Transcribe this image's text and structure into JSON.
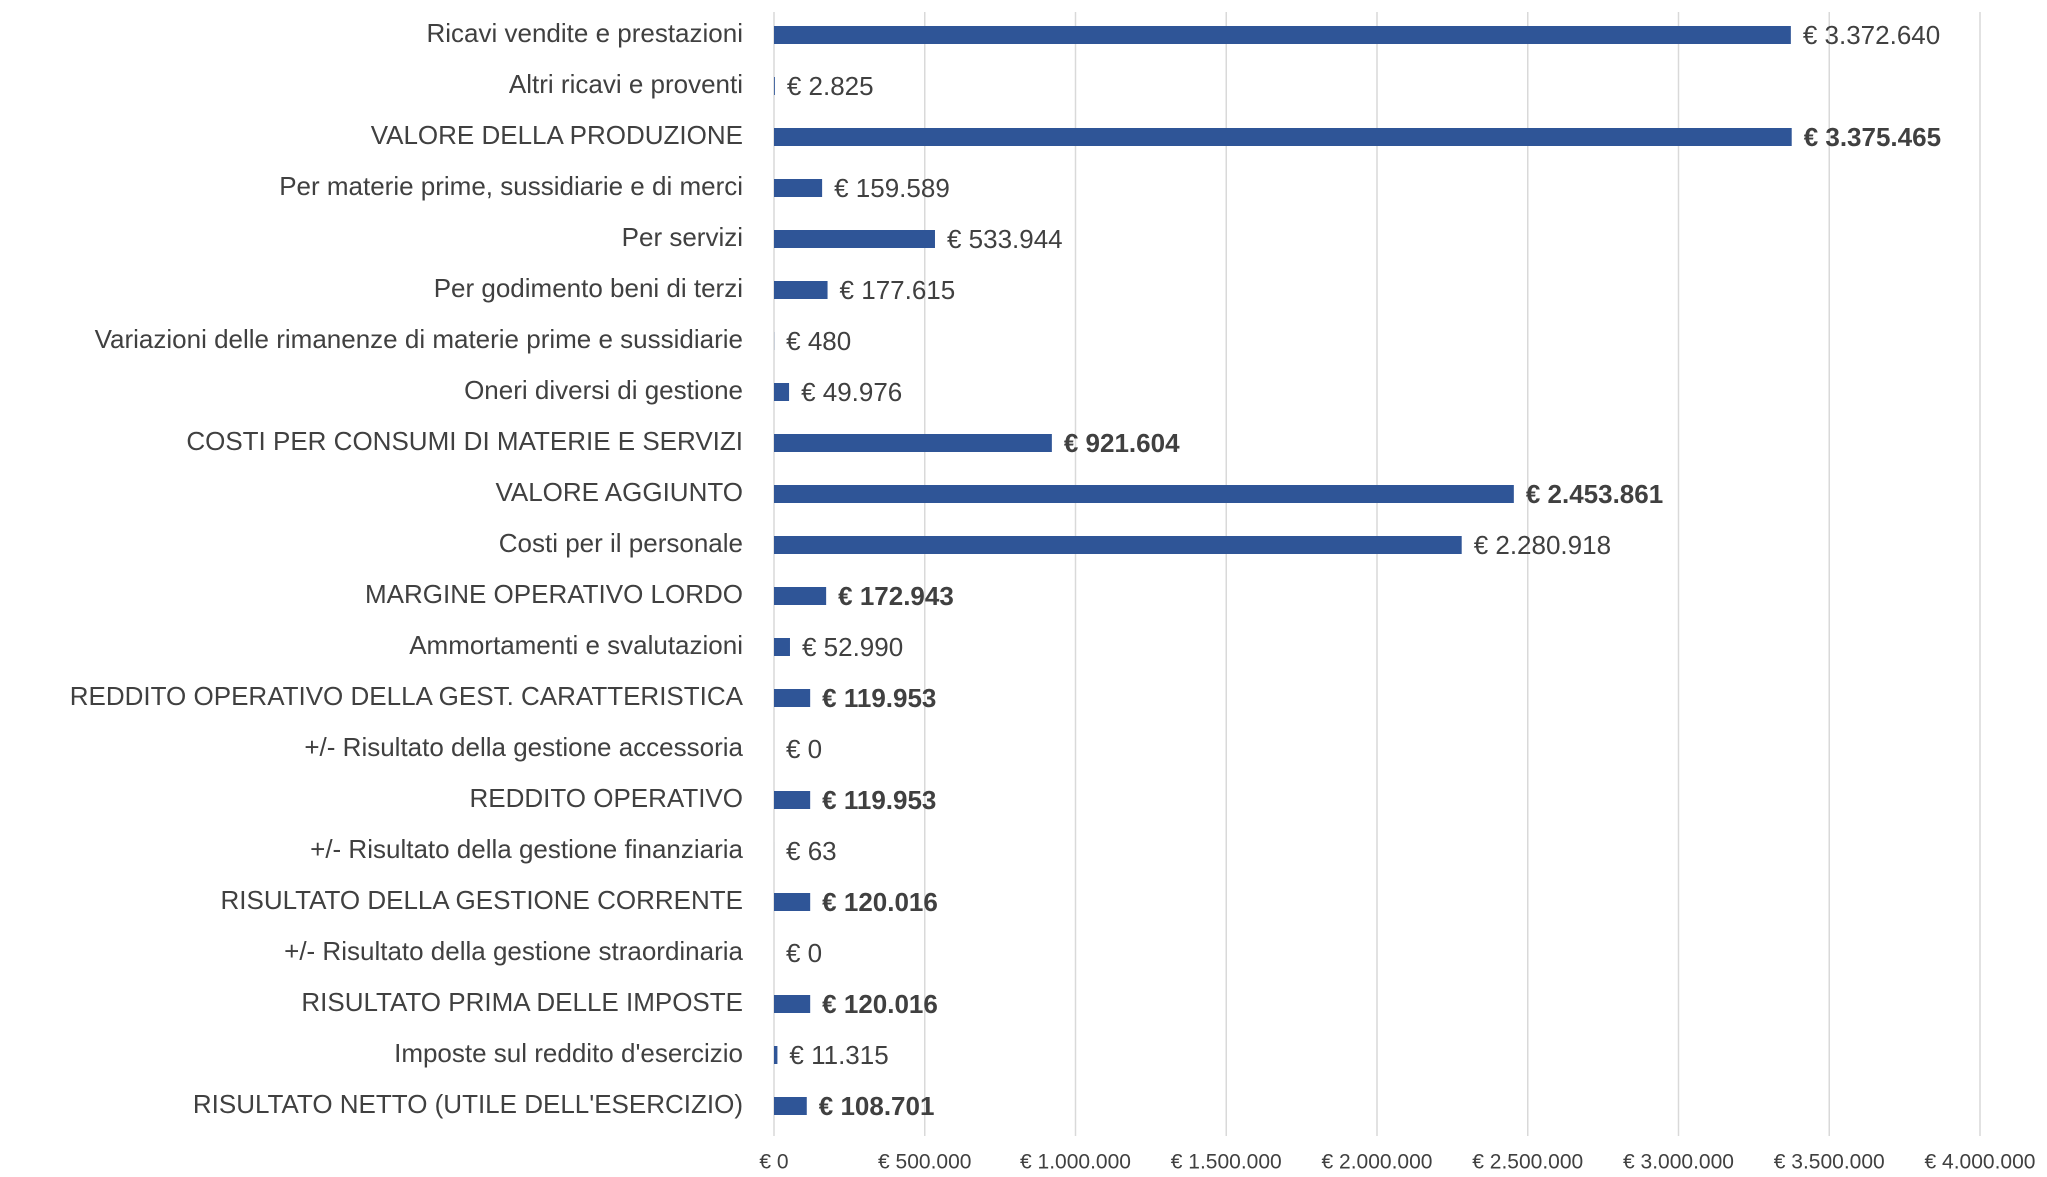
{
  "chart_data": {
    "type": "bar",
    "orientation": "horizontal",
    "categories": [
      "Ricavi vendite e prestazioni",
      "Altri ricavi e proventi",
      "VALORE DELLA PRODUZIONE ",
      "Per materie prime, sussidiarie e di merci",
      "Per servizi ",
      "Per godimento beni di terzi",
      "Variazioni delle rimanenze di materie prime e sussidiarie",
      "Oneri diversi di gestione",
      "COSTI PER CONSUMI DI MATERIE E SERVIZI",
      "VALORE AGGIUNTO",
      "Costi per il personale",
      "MARGINE OPERATIVO LORDO",
      "Ammortamenti e svalutazioni",
      "REDDITO OPERATIVO DELLA GEST. CARATTERISTICA",
      "+/- Risultato della gestione accessoria",
      "REDDITO OPERATIVO",
      "+/- Risultato della gestione finanziaria",
      "RISULTATO DELLA GESTIONE CORRENTE",
      "+/- Risultato della gestione straordinaria",
      "RISULTATO PRIMA DELLE IMPOSTE",
      "Imposte sul reddito d'esercizio",
      "RISULTATO NETTO (UTILE DELL'ESERCIZIO)"
    ],
    "values": [
      3372640,
      2825,
      3375465,
      159589,
      533944,
      177615,
      480,
      49976,
      921604,
      2453861,
      2280918,
      172943,
      52990,
      119953,
      0,
      119953,
      63,
      120016,
      0,
      120016,
      11315,
      108701
    ],
    "value_labels": [
      "€ 3.372.640",
      "€ 2.825",
      "€ 3.375.465",
      "€ 159.589",
      "€ 533.944",
      "€ 177.615",
      "€ 480",
      "€ 49.976",
      "€ 921.604",
      "€ 2.453.861",
      "€ 2.280.918",
      "€ 172.943",
      "€ 52.990",
      "€ 119.953",
      "€ 0",
      "€ 119.953",
      "€ 63",
      "€ 120.016",
      "€ 0",
      "€ 120.016",
      "€ 11.315",
      "€ 108.701"
    ],
    "value_label_bold": [
      false,
      false,
      true,
      false,
      false,
      false,
      false,
      false,
      true,
      true,
      false,
      true,
      false,
      true,
      false,
      true,
      false,
      true,
      false,
      true,
      false,
      true
    ],
    "color": "#2f5597",
    "xlim": [
      0,
      4000000
    ],
    "xticks": [
      {
        "value": 0,
        "label": "€ 0"
      },
      {
        "value": 500000,
        "label": "€ 500.000"
      },
      {
        "value": 1000000,
        "label": "€ 1.000.000"
      },
      {
        "value": 1500000,
        "label": "€ 1.500.000"
      },
      {
        "value": 2000000,
        "label": "€ 2.000.000"
      },
      {
        "value": 2500000,
        "label": "€ 2.500.000"
      },
      {
        "value": 3000000,
        "label": "€ 3.000.000"
      },
      {
        "value": 3500000,
        "label": "€ 3.500.000"
      },
      {
        "value": 4000000,
        "label": "€ 4.000.000"
      }
    ],
    "grid": true
  }
}
